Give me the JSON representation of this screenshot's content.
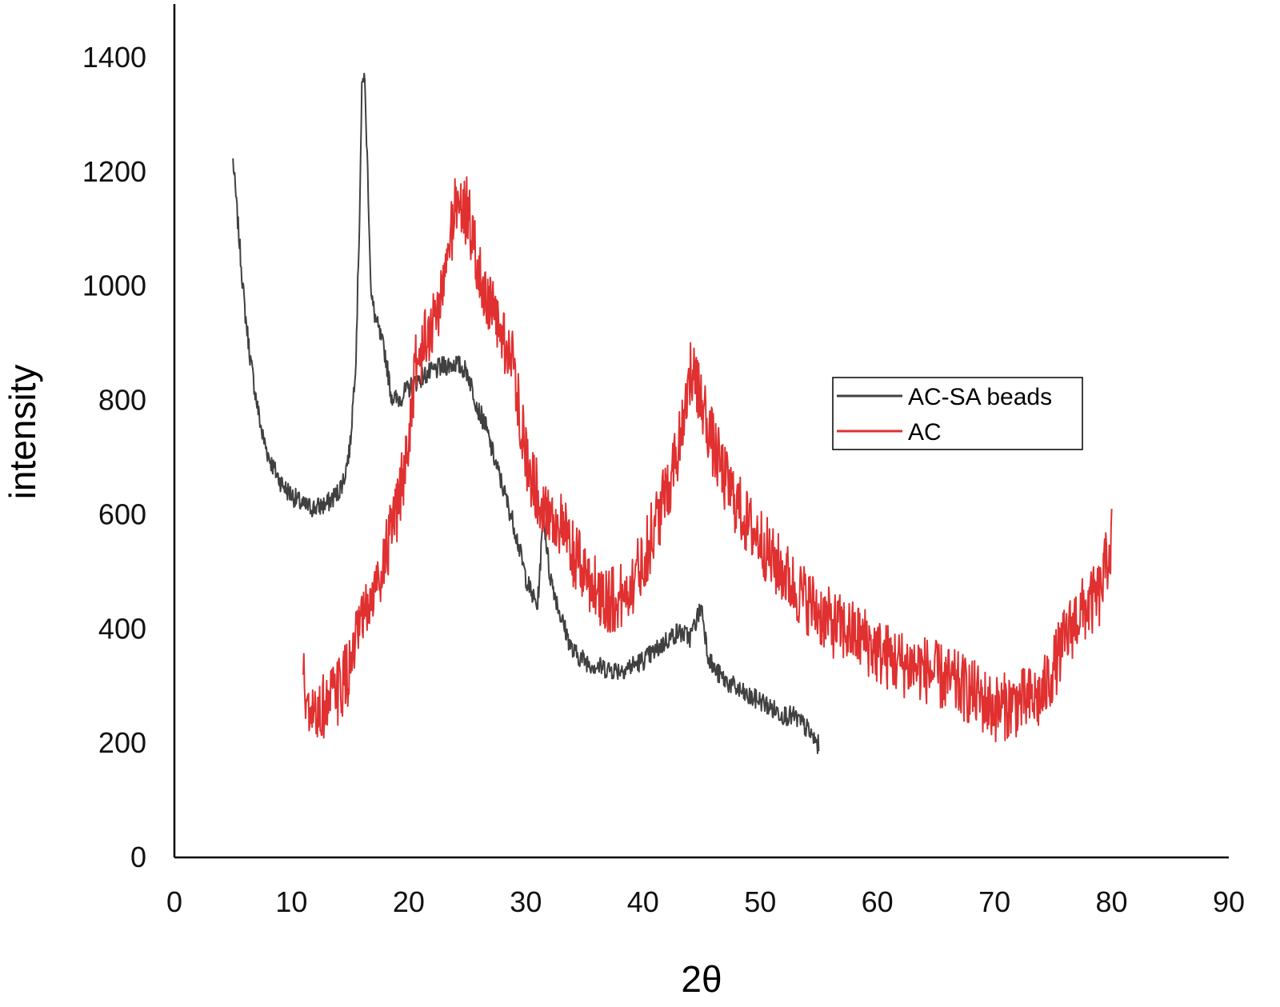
{
  "chart_data": {
    "type": "line",
    "title": "",
    "xlabel": "2θ",
    "ylabel": "intensity",
    "xlim": [
      0,
      90
    ],
    "ylim": [
      0,
      1400
    ],
    "xticks": [
      0,
      10,
      20,
      30,
      40,
      50,
      60,
      70,
      80,
      90
    ],
    "yticks": [
      0,
      200,
      400,
      600,
      800,
      1000,
      1200,
      1400
    ],
    "grid": false,
    "legend": {
      "placement": "right",
      "entries": [
        "AC-SA beads",
        "AC"
      ]
    },
    "series": [
      {
        "name": "AC-SA beads",
        "color": "#404040",
        "noise": 18,
        "points": [
          [
            5,
            1220
          ],
          [
            5.5,
            1090
          ],
          [
            6,
            960
          ],
          [
            6.5,
            870
          ],
          [
            7,
            800
          ],
          [
            7.5,
            740
          ],
          [
            8,
            705
          ],
          [
            8.5,
            680
          ],
          [
            9,
            660
          ],
          [
            9.5,
            645
          ],
          [
            10,
            635
          ],
          [
            10.5,
            625
          ],
          [
            11,
            615
          ],
          [
            12,
            612
          ],
          [
            13,
            618
          ],
          [
            14,
            640
          ],
          [
            14.5,
            665
          ],
          [
            15,
            720
          ],
          [
            15.5,
            880
          ],
          [
            15.8,
            1120
          ],
          [
            16,
            1340
          ],
          [
            16.2,
            1380
          ],
          [
            16.5,
            1200
          ],
          [
            16.8,
            980
          ],
          [
            17.2,
            940
          ],
          [
            18,
            880
          ],
          [
            18.5,
            810
          ],
          [
            19,
            800
          ],
          [
            20,
            820
          ],
          [
            21,
            840
          ],
          [
            22,
            850
          ],
          [
            23,
            860
          ],
          [
            24,
            865
          ],
          [
            25,
            850
          ],
          [
            26,
            780
          ],
          [
            26.5,
            760
          ],
          [
            27,
            720
          ],
          [
            28,
            650
          ],
          [
            29,
            580
          ],
          [
            30,
            490
          ],
          [
            30.5,
            460
          ],
          [
            31,
            440
          ],
          [
            31.5,
            600
          ],
          [
            32,
            500
          ],
          [
            33,
            420
          ],
          [
            34,
            360
          ],
          [
            35,
            345
          ],
          [
            36,
            335
          ],
          [
            37,
            330
          ],
          [
            38,
            328
          ],
          [
            39,
            335
          ],
          [
            40,
            345
          ],
          [
            41,
            360
          ],
          [
            42,
            380
          ],
          [
            43,
            395
          ],
          [
            44,
            385
          ],
          [
            45,
            440
          ],
          [
            45.5,
            360
          ],
          [
            46,
            330
          ],
          [
            47,
            310
          ],
          [
            48,
            295
          ],
          [
            49,
            280
          ],
          [
            50,
            275
          ],
          [
            51,
            260
          ],
          [
            52,
            250
          ],
          [
            53,
            245
          ],
          [
            54,
            225
          ],
          [
            55,
            195
          ]
        ]
      },
      {
        "name": "AC",
        "color": "#e03030",
        "noise": 60,
        "points": [
          [
            11,
            320
          ],
          [
            11.5,
            230
          ],
          [
            12,
            250
          ],
          [
            13,
            270
          ],
          [
            14,
            290
          ],
          [
            15,
            330
          ],
          [
            16,
            410
          ],
          [
            17,
            460
          ],
          [
            18,
            530
          ],
          [
            19,
            600
          ],
          [
            20,
            730
          ],
          [
            20.5,
            850
          ],
          [
            21,
            880
          ],
          [
            22,
            930
          ],
          [
            23,
            1000
          ],
          [
            24,
            1150
          ],
          [
            25,
            1130
          ],
          [
            26,
            1020
          ],
          [
            27,
            960
          ],
          [
            28,
            910
          ],
          [
            29,
            860
          ],
          [
            30,
            700
          ],
          [
            31,
            640
          ],
          [
            32,
            600
          ],
          [
            33,
            580
          ],
          [
            34,
            530
          ],
          [
            35,
            500
          ],
          [
            36,
            470
          ],
          [
            37,
            450
          ],
          [
            38,
            450
          ],
          [
            39,
            480
          ],
          [
            40,
            520
          ],
          [
            41,
            580
          ],
          [
            42,
            640
          ],
          [
            43,
            720
          ],
          [
            44,
            850
          ],
          [
            45,
            800
          ],
          [
            46,
            720
          ],
          [
            47,
            660
          ],
          [
            48,
            620
          ],
          [
            49,
            580
          ],
          [
            50,
            560
          ],
          [
            51,
            520
          ],
          [
            52,
            500
          ],
          [
            53,
            470
          ],
          [
            54,
            450
          ],
          [
            55,
            430
          ],
          [
            56,
            410
          ],
          [
            57,
            400
          ],
          [
            58,
            390
          ],
          [
            59,
            380
          ],
          [
            60,
            360
          ],
          [
            62,
            340
          ],
          [
            64,
            330
          ],
          [
            66,
            310
          ],
          [
            68,
            290
          ],
          [
            70,
            260
          ],
          [
            72,
            270
          ],
          [
            74,
            280
          ],
          [
            75,
            330
          ],
          [
            76,
            380
          ],
          [
            77,
            420
          ],
          [
            78,
            440
          ],
          [
            79,
            460
          ],
          [
            80,
            560
          ]
        ]
      }
    ]
  }
}
